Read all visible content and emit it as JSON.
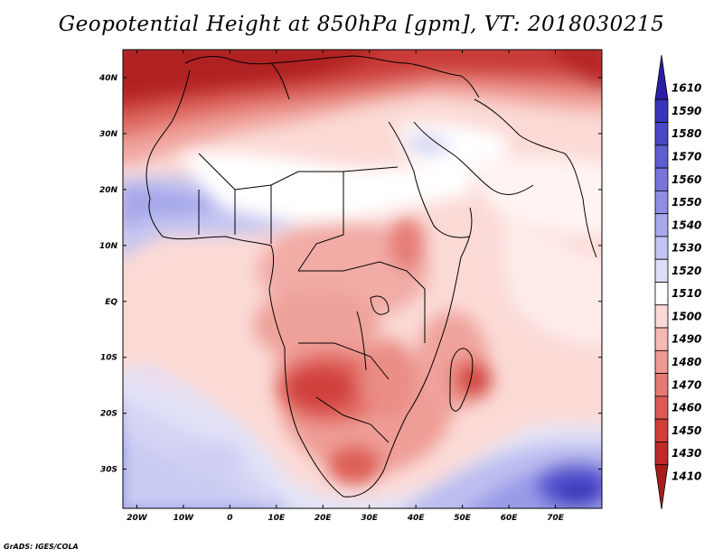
{
  "title": "Geopotential Height at 850hPa [gpm], VT: 2018030215",
  "credit": "GrADS: IGES/COLA",
  "map": {
    "lon_range": [
      -23,
      80
    ],
    "lat_range": [
      -37,
      45
    ],
    "lon_ticks": [
      {
        "value": -20,
        "label": "20W"
      },
      {
        "value": -10,
        "label": "10W"
      },
      {
        "value": 0,
        "label": "0"
      },
      {
        "value": 10,
        "label": "10E"
      },
      {
        "value": 20,
        "label": "20E"
      },
      {
        "value": 30,
        "label": "30E"
      },
      {
        "value": 40,
        "label": "40E"
      },
      {
        "value": 50,
        "label": "50E"
      },
      {
        "value": 60,
        "label": "60E"
      },
      {
        "value": 70,
        "label": "70E"
      }
    ],
    "lat_ticks": [
      {
        "value": 40,
        "label": "40N"
      },
      {
        "value": 30,
        "label": "30N"
      },
      {
        "value": 20,
        "label": "20N"
      },
      {
        "value": 10,
        "label": "10N"
      },
      {
        "value": 0,
        "label": "EQ"
      },
      {
        "value": -10,
        "label": "10S"
      },
      {
        "value": -20,
        "label": "20S"
      },
      {
        "value": -30,
        "label": "30S"
      }
    ]
  },
  "colorbar": {
    "levels_top_to_bottom": [
      "1610",
      "1590",
      "1580",
      "1570",
      "1560",
      "1550",
      "1540",
      "1530",
      "1520",
      "1510",
      "1500",
      "1490",
      "1480",
      "1470",
      "1460",
      "1450",
      "1430",
      "1410"
    ],
    "colors_top_to_bottom": [
      "#2a1fa6",
      "#3a35b8",
      "#4a47c6",
      "#5f5dd2",
      "#7775dc",
      "#8f8ee4",
      "#a8a8ec",
      "#c3c4f2",
      "#dcdef8",
      "#ffffff",
      "#fbd9d6",
      "#f5b9b4",
      "#ee9991",
      "#e67a72",
      "#dc5a54",
      "#d03d3a",
      "#be2929",
      "#a81d1d"
    ]
  }
}
